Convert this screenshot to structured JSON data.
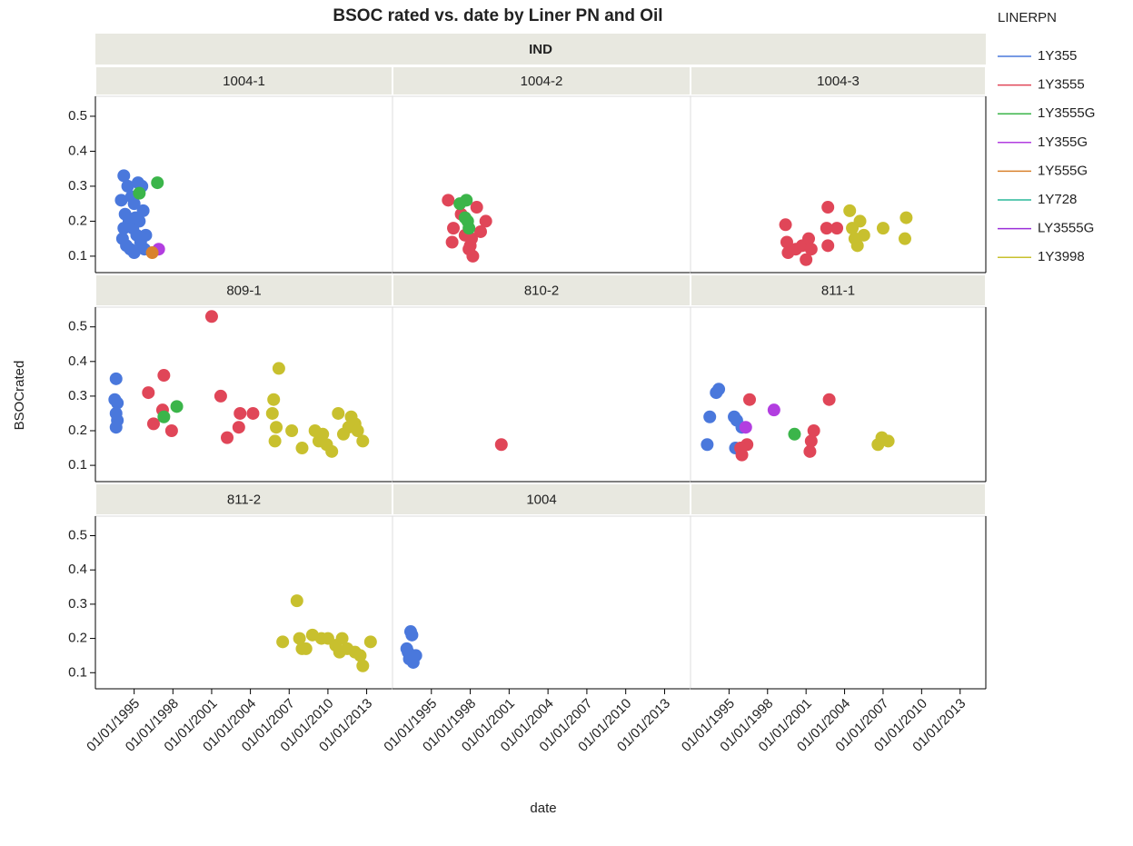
{
  "chart_data": {
    "type": "scatter",
    "title": "BSOC rated vs. date by Liner PN and Oil",
    "group_label": "IND",
    "x_label": "date",
    "y_label": "BSOCrated",
    "xlim": [
      1992,
      2015
    ],
    "xticks": [
      {
        "value": 1995,
        "label": "01/01/1995"
      },
      {
        "value": 1998,
        "label": "01/01/1998"
      },
      {
        "value": 2001,
        "label": "01/01/2001"
      },
      {
        "value": 2004,
        "label": "01/01/2004"
      },
      {
        "value": 2007,
        "label": "01/01/2007"
      },
      {
        "value": 2010,
        "label": "01/01/2010"
      },
      {
        "value": 2013,
        "label": "01/01/2013"
      }
    ],
    "ylim": [
      0.053,
      0.557
    ],
    "yticks": [
      0.1,
      0.2,
      0.3,
      0.4,
      0.5
    ],
    "legend": {
      "title": "LINERPN",
      "items": [
        {
          "name": "1Y355",
          "color": "#4a78dc"
        },
        {
          "name": "1Y3555",
          "color": "#e04658"
        },
        {
          "name": "1Y3555G",
          "color": "#3bb54a"
        },
        {
          "name": "1Y355G",
          "color": "#b23ee0"
        },
        {
          "name": "1Y555G",
          "color": "#d9822e"
        },
        {
          "name": "1Y728",
          "color": "#2ab89a"
        },
        {
          "name": "LY3555G",
          "color": "#9a2fd8"
        },
        {
          "name": "1Y3998",
          "color": "#c8c02e"
        }
      ]
    },
    "panels": [
      {
        "title": "1004-1",
        "series": [
          {
            "name": "1Y355",
            "x": [
              1994.2,
              1994.5,
              1994.8,
              1995.0,
              1995.3,
              1995.6,
              1994.0,
              1994.3,
              1994.6,
              1994.9,
              1995.2,
              1995.5,
              1995.8,
              1994.1,
              1994.4,
              1994.7,
              1995.0,
              1995.4,
              1995.7,
              1994.2,
              1995.1,
              1995.9
            ],
            "values": [
              0.33,
              0.3,
              0.27,
              0.25,
              0.31,
              0.3,
              0.26,
              0.22,
              0.2,
              0.18,
              0.16,
              0.14,
              0.12,
              0.15,
              0.13,
              0.12,
              0.11,
              0.2,
              0.23,
              0.18,
              0.21,
              0.16
            ]
          },
          {
            "name": "1Y3555G",
            "x": [
              1995.4,
              1996.8
            ],
            "values": [
              0.28,
              0.31
            ]
          },
          {
            "name": "1Y355G",
            "x": [
              1996.9
            ],
            "values": [
              0.12
            ]
          },
          {
            "name": "1Y555G",
            "x": [
              1996.4
            ],
            "values": [
              0.11
            ]
          }
        ]
      },
      {
        "title": "1004-2",
        "series": [
          {
            "name": "1Y3555",
            "x": [
              1996.3,
              1996.7,
              1996.6,
              1997.3,
              1997.6,
              1998.0,
              1998.2,
              1998.5,
              1998.8,
              1999.2,
              1997.9,
              1998.1
            ],
            "values": [
              0.26,
              0.18,
              0.14,
              0.22,
              0.16,
              0.13,
              0.1,
              0.24,
              0.17,
              0.2,
              0.12,
              0.15
            ]
          },
          {
            "name": "1Y3555G",
            "x": [
              1997.2,
              1997.7,
              1997.8,
              1997.9,
              1997.6
            ],
            "values": [
              0.25,
              0.26,
              0.2,
              0.18,
              0.21
            ]
          }
        ]
      },
      {
        "title": "1004-3",
        "series": [
          {
            "name": "1Y3555",
            "x": [
              1999.4,
              1999.5,
              1999.6,
              2000.2,
              2000.7,
              2001.0,
              2001.2,
              2001.4,
              2002.7,
              2002.6,
              2002.7,
              2003.4
            ],
            "values": [
              0.19,
              0.14,
              0.11,
              0.12,
              0.13,
              0.09,
              0.15,
              0.12,
              0.24,
              0.18,
              0.13,
              0.18
            ]
          },
          {
            "name": "1Y3998",
            "x": [
              2004.4,
              2004.6,
              2004.8,
              2005.0,
              2005.2,
              2005.5,
              2007.0,
              2008.8,
              2008.7
            ],
            "values": [
              0.23,
              0.18,
              0.15,
              0.13,
              0.2,
              0.16,
              0.18,
              0.21,
              0.15
            ]
          }
        ]
      },
      {
        "title": "809-1",
        "series": [
          {
            "name": "1Y355",
            "x": [
              1993.6,
              1993.5,
              1993.7,
              1993.6,
              1993.7,
              1993.6
            ],
            "values": [
              0.35,
              0.29,
              0.28,
              0.25,
              0.23,
              0.21
            ]
          },
          {
            "name": "1Y3555",
            "x": [
              1996.1,
              1996.5,
              1997.3,
              1997.2,
              1997.9,
              2001.0,
              2001.7,
              2002.2,
              2003.1,
              2003.2,
              2004.2
            ],
            "values": [
              0.31,
              0.22,
              0.36,
              0.26,
              0.2,
              0.53,
              0.3,
              0.18,
              0.21,
              0.25,
              0.25
            ]
          },
          {
            "name": "1Y3555G",
            "x": [
              1997.3,
              1998.3
            ],
            "values": [
              0.24,
              0.27
            ]
          },
          {
            "name": "1Y3998",
            "x": [
              2005.7,
              2005.8,
              2006.0,
              2005.9,
              2006.2,
              2007.2,
              2008.0,
              2009.0,
              2009.3,
              2009.6,
              2009.9,
              2010.3,
              2010.8,
              2011.2,
              2011.6,
              2011.8,
              2012.1,
              2012.3,
              2012.7
            ],
            "values": [
              0.25,
              0.29,
              0.21,
              0.17,
              0.38,
              0.2,
              0.15,
              0.2,
              0.17,
              0.19,
              0.16,
              0.14,
              0.25,
              0.19,
              0.21,
              0.24,
              0.22,
              0.2,
              0.17
            ]
          }
        ]
      },
      {
        "title": "810-2",
        "series": [
          {
            "name": "1Y3555",
            "x": [
              2000.4
            ],
            "values": [
              0.16
            ]
          }
        ]
      },
      {
        "title": "811-1",
        "series": [
          {
            "name": "1Y355",
            "x": [
              1993.3,
              1993.5,
              1994.0,
              1994.2,
              1995.4,
              1995.6,
              1995.5,
              1996.0
            ],
            "values": [
              0.16,
              0.24,
              0.31,
              0.32,
              0.24,
              0.23,
              0.15,
              0.21
            ]
          },
          {
            "name": "1Y3555",
            "x": [
              1996.0,
              1996.4,
              1996.6,
              1995.9,
              2001.3,
              2001.4,
              2001.6,
              2002.8
            ],
            "values": [
              0.13,
              0.16,
              0.29,
              0.15,
              0.14,
              0.17,
              0.2,
              0.29
            ]
          },
          {
            "name": "1Y355G",
            "x": [
              1996.3,
              1998.5
            ],
            "values": [
              0.21,
              0.26
            ]
          },
          {
            "name": "1Y3555G",
            "x": [
              2000.1
            ],
            "values": [
              0.19
            ]
          },
          {
            "name": "1Y3998",
            "x": [
              2006.6,
              2006.9,
              2007.4
            ],
            "values": [
              0.16,
              0.18,
              0.17
            ]
          }
        ]
      },
      {
        "title": "811-2",
        "series": [
          {
            "name": "1Y3998",
            "x": [
              2006.5,
              2007.6,
              2007.8,
              2008.0,
              2008.3,
              2008.8,
              2009.5,
              2010.0,
              2010.6,
              2010.9,
              2011.1,
              2011.5,
              2012.1,
              2012.5,
              2012.7,
              2013.3
            ],
            "values": [
              0.19,
              0.31,
              0.2,
              0.17,
              0.17,
              0.21,
              0.2,
              0.2,
              0.18,
              0.16,
              0.2,
              0.17,
              0.16,
              0.15,
              0.12,
              0.19
            ]
          }
        ]
      },
      {
        "title": "1004",
        "series": [
          {
            "name": "1Y355",
            "x": [
              1993.4,
              1993.5,
              1993.2,
              1993.3,
              1993.6,
              1993.8,
              1993.1
            ],
            "values": [
              0.22,
              0.21,
              0.16,
              0.14,
              0.13,
              0.15,
              0.17
            ]
          }
        ]
      }
    ]
  }
}
